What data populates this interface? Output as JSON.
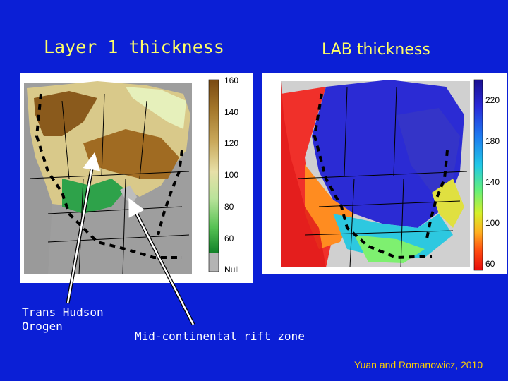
{
  "slide": {
    "title_left": "Layer 1 thickness",
    "title_right": "LAB thickness",
    "label_trans_hudson": "Trans Hudson\nOrogen",
    "label_midcontinental": "Mid-continental rift zone",
    "citation": "Yuan and Romanowicz, 2010"
  },
  "colorbar_left": {
    "ticks": [
      "160",
      "140",
      "120",
      "100",
      "80",
      "60",
      "Null"
    ],
    "colors": [
      "#7a4a12",
      "#a3762a",
      "#c9a85a",
      "#e7e0a8",
      "#b9e39a",
      "#56c253",
      "#13832a",
      "#b4b4b4"
    ]
  },
  "colorbar_right": {
    "ticks": [
      "220",
      "180",
      "140",
      "100",
      "60"
    ],
    "colors": [
      "#1b1090",
      "#2a2ad8",
      "#1e7cf0",
      "#21c9e6",
      "#63f07a",
      "#d5f02a",
      "#ffb020",
      "#ff4a10",
      "#e60c0c"
    ]
  },
  "colors": {
    "background": "#0b1fd6",
    "title": "#ffff66",
    "label": "#ffffff",
    "citation": "#ffd000"
  }
}
